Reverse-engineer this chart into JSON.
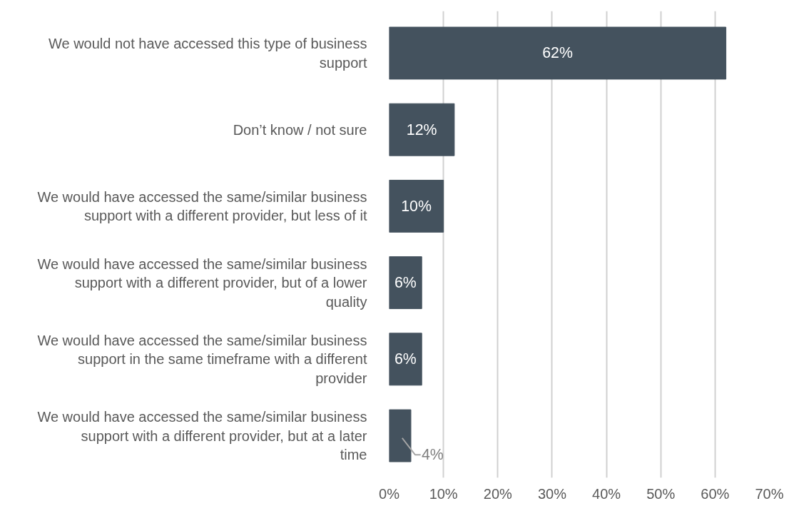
{
  "chart_data": {
    "type": "bar",
    "orientation": "horizontal",
    "categories": [
      "We would not have accessed this type of business support",
      "Don’t know / not sure",
      "We would have accessed the same/similar business support with a different provider, but less of it",
      "We would have accessed the same/similar business support with a different provider, but of a lower quality",
      "We would have accessed the same/similar business support in the same timeframe with a different provider",
      "We would have accessed the same/similar business support with a different provider, but at a later time"
    ],
    "values": [
      62,
      12,
      10,
      6,
      6,
      4
    ],
    "value_labels": [
      "62%",
      "12%",
      "10%",
      "6%",
      "6%",
      "4%"
    ],
    "color": "#44525e",
    "xlim": [
      0,
      70
    ],
    "xticks": [
      {
        "value": 0,
        "label": "0%"
      },
      {
        "value": 10,
        "label": "10%"
      },
      {
        "value": 20,
        "label": "20%"
      },
      {
        "value": 30,
        "label": "30%"
      },
      {
        "value": 40,
        "label": "40%"
      },
      {
        "value": 50,
        "label": "50%"
      },
      {
        "value": 60,
        "label": "60%"
      },
      {
        "value": 70,
        "label": "70%"
      }
    ],
    "grid": "x"
  }
}
